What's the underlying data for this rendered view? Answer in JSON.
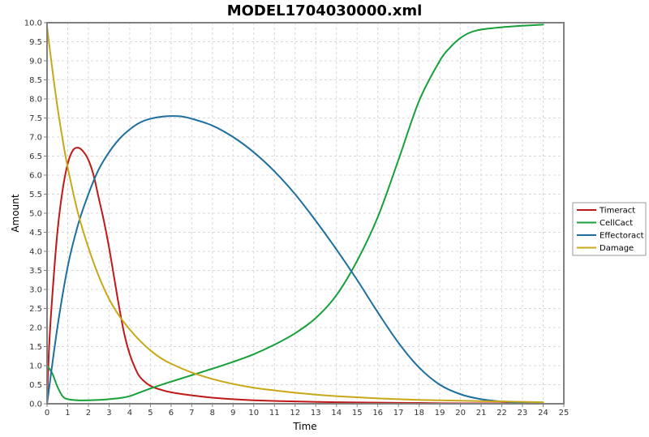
{
  "chart_data": {
    "type": "line",
    "title": "MODEL1704030000.xml",
    "xlabel": "Time",
    "ylabel": "Amount",
    "xlim": [
      0,
      25
    ],
    "ylim": [
      0,
      10
    ],
    "x_ticks": [
      "0",
      "1",
      "2",
      "3",
      "4",
      "5",
      "6",
      "7",
      "8",
      "9",
      "10",
      "11",
      "12",
      "13",
      "14",
      "15",
      "16",
      "17",
      "18",
      "19",
      "20",
      "21",
      "22",
      "23",
      "24",
      "25"
    ],
    "y_ticks": [
      "0.0",
      "0.5",
      "1.0",
      "1.5",
      "2.0",
      "2.5",
      "3.0",
      "3.5",
      "4.0",
      "4.5",
      "5.0",
      "5.5",
      "6.0",
      "6.5",
      "7.0",
      "7.5",
      "8.0",
      "8.5",
      "9.0",
      "9.5",
      "10.0"
    ],
    "grid": true,
    "legend_position": "right",
    "series": [
      {
        "name": "Timeract",
        "color": "#c01818",
        "x": [
          0,
          0.1,
          0.25,
          0.5,
          0.75,
          1.0,
          1.25,
          1.5,
          1.75,
          2.0,
          2.25,
          2.5,
          2.75,
          3.0,
          3.25,
          3.5,
          3.75,
          4.0,
          4.25,
          4.5,
          5.0,
          5.5,
          6.0,
          7.0,
          8.0,
          9.0,
          10.0,
          12.0,
          14.0,
          16.0,
          18.0,
          20.0,
          22.0,
          24.0
        ],
        "y": [
          0.0,
          1.5,
          2.8,
          4.5,
          5.6,
          6.3,
          6.65,
          6.72,
          6.62,
          6.4,
          6.0,
          5.4,
          4.8,
          4.1,
          3.3,
          2.5,
          1.8,
          1.3,
          0.95,
          0.7,
          0.47,
          0.37,
          0.3,
          0.22,
          0.16,
          0.12,
          0.09,
          0.06,
          0.04,
          0.03,
          0.02,
          0.01,
          0.01,
          0.0
        ]
      },
      {
        "name": "CellCact",
        "color": "#17a03a",
        "x": [
          0,
          0.25,
          0.5,
          0.75,
          1.0,
          1.5,
          2.0,
          2.5,
          3.0,
          3.5,
          4.0,
          5.0,
          6.0,
          7.0,
          8.0,
          9.0,
          10.0,
          11.0,
          12.0,
          13.0,
          14.0,
          15.0,
          16.0,
          17.0,
          18.0,
          19.0,
          19.5,
          20.0,
          20.5,
          21.0,
          22.0,
          23.0,
          24.0
        ],
        "y": [
          1.0,
          0.8,
          0.45,
          0.2,
          0.12,
          0.09,
          0.09,
          0.1,
          0.12,
          0.15,
          0.2,
          0.4,
          0.58,
          0.75,
          0.92,
          1.1,
          1.3,
          1.55,
          1.85,
          2.25,
          2.85,
          3.75,
          4.9,
          6.4,
          7.95,
          9.0,
          9.35,
          9.6,
          9.75,
          9.82,
          9.88,
          9.92,
          9.95
        ]
      },
      {
        "name": "Effectoract",
        "color": "#1c6f9f",
        "x": [
          0,
          0.5,
          1.0,
          1.5,
          2.0,
          2.5,
          3.0,
          3.5,
          4.0,
          4.5,
          5.0,
          5.5,
          6.0,
          6.5,
          7.0,
          8.0,
          9.0,
          10.0,
          11.0,
          12.0,
          13.0,
          14.0,
          15.0,
          16.0,
          17.0,
          18.0,
          19.0,
          20.0,
          21.0,
          22.0,
          23.0,
          24.0
        ],
        "y": [
          0.0,
          2.0,
          3.6,
          4.7,
          5.5,
          6.15,
          6.6,
          6.95,
          7.2,
          7.38,
          7.48,
          7.53,
          7.55,
          7.54,
          7.48,
          7.3,
          7.0,
          6.6,
          6.1,
          5.5,
          4.8,
          4.05,
          3.25,
          2.4,
          1.6,
          0.95,
          0.5,
          0.25,
          0.12,
          0.06,
          0.03,
          0.02
        ]
      },
      {
        "name": "Damage",
        "color": "#c8a818",
        "x": [
          0,
          0.25,
          0.5,
          0.75,
          1.0,
          1.5,
          2.0,
          2.5,
          3.0,
          3.5,
          4.0,
          4.5,
          5.0,
          5.5,
          6.0,
          7.0,
          8.0,
          9.0,
          10.0,
          11.0,
          12.0,
          13.0,
          14.0,
          15.0,
          16.0,
          17.0,
          18.0,
          19.0,
          20.0,
          21.0,
          22.0,
          23.0,
          24.0
        ],
        "y": [
          9.9,
          8.8,
          7.8,
          6.95,
          6.2,
          5.0,
          4.1,
          3.35,
          2.75,
          2.3,
          1.95,
          1.65,
          1.4,
          1.2,
          1.05,
          0.82,
          0.65,
          0.52,
          0.42,
          0.35,
          0.29,
          0.24,
          0.2,
          0.17,
          0.14,
          0.12,
          0.1,
          0.09,
          0.08,
          0.07,
          0.06,
          0.05,
          0.04
        ]
      }
    ]
  }
}
